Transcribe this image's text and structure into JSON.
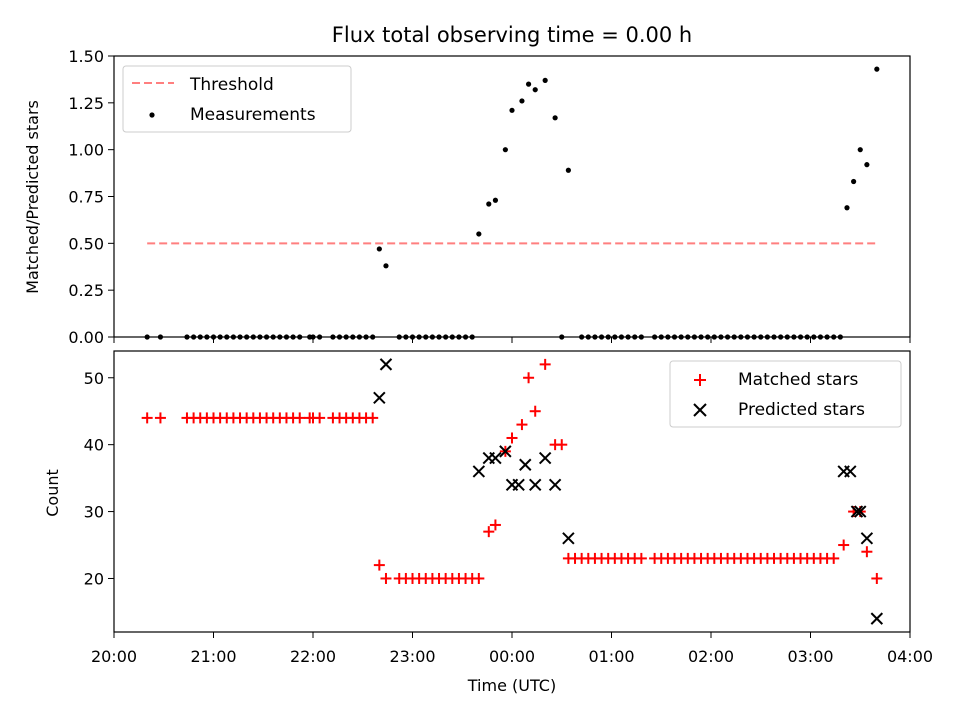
{
  "chart_data": [
    {
      "type": "scatter",
      "title": "Flux total observing time = 0.00 h",
      "xlabel": "",
      "ylabel": "Matched/Predicted stars",
      "xlim": [
        "20:00",
        "04:00"
      ],
      "ylim": [
        0,
        1.5
      ],
      "yticks": [
        "0.00",
        "0.25",
        "0.50",
        "0.75",
        "1.00",
        "1.25",
        "1.50"
      ],
      "legend": {
        "placement": "upper left",
        "entries": [
          "Threshold",
          "Measurements"
        ]
      },
      "colors": {
        "threshold": "#ff7f7f",
        "measurements": "#000000"
      },
      "threshold": {
        "name": "Threshold",
        "value": 0.5,
        "x_start": "20:20",
        "x_end": "03:40"
      },
      "series": [
        {
          "name": "Measurements",
          "points": [
            [
              "20:20",
              0
            ],
            [
              "20:28",
              0
            ],
            [
              "20:44",
              0
            ],
            [
              "20:48",
              0
            ],
            [
              "20:52",
              0
            ],
            [
              "20:56",
              0
            ],
            [
              "21:00",
              0
            ],
            [
              "21:04",
              0
            ],
            [
              "21:08",
              0
            ],
            [
              "21:12",
              0
            ],
            [
              "21:16",
              0
            ],
            [
              "21:20",
              0
            ],
            [
              "21:24",
              0
            ],
            [
              "21:28",
              0
            ],
            [
              "21:32",
              0
            ],
            [
              "21:36",
              0
            ],
            [
              "21:40",
              0
            ],
            [
              "21:44",
              0
            ],
            [
              "21:48",
              0
            ],
            [
              "21:52",
              0
            ],
            [
              "21:58",
              0
            ],
            [
              "22:00",
              0
            ],
            [
              "22:04",
              0
            ],
            [
              "22:12",
              0
            ],
            [
              "22:16",
              0
            ],
            [
              "22:20",
              0
            ],
            [
              "22:24",
              0
            ],
            [
              "22:28",
              0
            ],
            [
              "22:32",
              0
            ],
            [
              "22:36",
              0
            ],
            [
              "22:40",
              0.47
            ],
            [
              "22:44",
              0.38
            ],
            [
              "22:52",
              0
            ],
            [
              "22:56",
              0
            ],
            [
              "23:00",
              0
            ],
            [
              "23:04",
              0
            ],
            [
              "23:08",
              0
            ],
            [
              "23:12",
              0
            ],
            [
              "23:16",
              0
            ],
            [
              "23:20",
              0
            ],
            [
              "23:24",
              0
            ],
            [
              "23:28",
              0
            ],
            [
              "23:32",
              0
            ],
            [
              "23:36",
              0
            ],
            [
              "23:40",
              0.55
            ],
            [
              "23:46",
              0.71
            ],
            [
              "23:50",
              0.73
            ],
            [
              "23:56",
              1.0
            ],
            [
              "00:00",
              1.21
            ],
            [
              "00:06",
              1.26
            ],
            [
              "00:10",
              1.35
            ],
            [
              "00:14",
              1.32
            ],
            [
              "00:20",
              1.37
            ],
            [
              "00:26",
              1.17
            ],
            [
              "00:30",
              0
            ],
            [
              "00:34",
              0.89
            ],
            [
              "00:42",
              0
            ],
            [
              "00:46",
              0
            ],
            [
              "00:50",
              0
            ],
            [
              "00:54",
              0
            ],
            [
              "00:58",
              0
            ],
            [
              "01:02",
              0
            ],
            [
              "01:06",
              0
            ],
            [
              "01:10",
              0
            ],
            [
              "01:14",
              0
            ],
            [
              "01:18",
              0
            ],
            [
              "01:26",
              0
            ],
            [
              "01:30",
              0
            ],
            [
              "01:34",
              0
            ],
            [
              "01:38",
              0
            ],
            [
              "01:42",
              0
            ],
            [
              "01:46",
              0
            ],
            [
              "01:50",
              0
            ],
            [
              "01:54",
              0
            ],
            [
              "01:58",
              0
            ],
            [
              "02:02",
              0
            ],
            [
              "02:06",
              0
            ],
            [
              "02:10",
              0
            ],
            [
              "02:14",
              0
            ],
            [
              "02:18",
              0
            ],
            [
              "02:22",
              0
            ],
            [
              "02:26",
              0
            ],
            [
              "02:30",
              0
            ],
            [
              "02:34",
              0
            ],
            [
              "02:38",
              0
            ],
            [
              "02:42",
              0
            ],
            [
              "02:46",
              0
            ],
            [
              "02:50",
              0
            ],
            [
              "02:54",
              0
            ],
            [
              "02:58",
              0
            ],
            [
              "03:02",
              0
            ],
            [
              "03:06",
              0
            ],
            [
              "03:10",
              0
            ],
            [
              "03:14",
              0
            ],
            [
              "03:18",
              0
            ],
            [
              "03:22",
              0.69
            ],
            [
              "03:26",
              0.83
            ],
            [
              "03:30",
              1.0
            ],
            [
              "03:34",
              0.92
            ],
            [
              "03:40",
              1.43
            ]
          ]
        }
      ]
    },
    {
      "type": "scatter",
      "title": "",
      "xlabel": "Time (UTC)",
      "ylabel": "Count",
      "xlim": [
        "20:00",
        "04:00"
      ],
      "ylim": [
        12,
        54
      ],
      "yticks": [
        "20",
        "30",
        "40",
        "50"
      ],
      "xticks": [
        "20:00",
        "21:00",
        "22:00",
        "23:00",
        "00:00",
        "01:00",
        "02:00",
        "03:00",
        "04:00"
      ],
      "legend": {
        "placement": "upper right",
        "entries": [
          "Matched stars",
          "Predicted stars"
        ]
      },
      "colors": {
        "matched": "#ff0000",
        "predicted": "#000000"
      },
      "series": [
        {
          "name": "Matched stars",
          "marker": "+",
          "points": [
            [
              "20:20",
              44
            ],
            [
              "20:28",
              44
            ],
            [
              "20:44",
              44
            ],
            [
              "20:48",
              44
            ],
            [
              "20:52",
              44
            ],
            [
              "20:56",
              44
            ],
            [
              "21:00",
              44
            ],
            [
              "21:04",
              44
            ],
            [
              "21:08",
              44
            ],
            [
              "21:12",
              44
            ],
            [
              "21:16",
              44
            ],
            [
              "21:20",
              44
            ],
            [
              "21:24",
              44
            ],
            [
              "21:28",
              44
            ],
            [
              "21:32",
              44
            ],
            [
              "21:36",
              44
            ],
            [
              "21:40",
              44
            ],
            [
              "21:44",
              44
            ],
            [
              "21:48",
              44
            ],
            [
              "21:52",
              44
            ],
            [
              "21:58",
              44
            ],
            [
              "22:00",
              44
            ],
            [
              "22:04",
              44
            ],
            [
              "22:12",
              44
            ],
            [
              "22:16",
              44
            ],
            [
              "22:20",
              44
            ],
            [
              "22:24",
              44
            ],
            [
              "22:28",
              44
            ],
            [
              "22:32",
              44
            ],
            [
              "22:36",
              44
            ],
            [
              "22:40",
              22
            ],
            [
              "22:44",
              20
            ],
            [
              "22:52",
              20
            ],
            [
              "22:56",
              20
            ],
            [
              "23:00",
              20
            ],
            [
              "23:04",
              20
            ],
            [
              "23:08",
              20
            ],
            [
              "23:12",
              20
            ],
            [
              "23:16",
              20
            ],
            [
              "23:20",
              20
            ],
            [
              "23:24",
              20
            ],
            [
              "23:28",
              20
            ],
            [
              "23:32",
              20
            ],
            [
              "23:36",
              20
            ],
            [
              "23:40",
              20
            ],
            [
              "23:46",
              27
            ],
            [
              "23:50",
              28
            ],
            [
              "23:56",
              39
            ],
            [
              "00:00",
              41
            ],
            [
              "00:06",
              43
            ],
            [
              "00:10",
              50
            ],
            [
              "00:14",
              45
            ],
            [
              "00:20",
              52
            ],
            [
              "00:26",
              40
            ],
            [
              "00:30",
              40
            ],
            [
              "00:34",
              23
            ],
            [
              "00:38",
              23
            ],
            [
              "00:42",
              23
            ],
            [
              "00:46",
              23
            ],
            [
              "00:50",
              23
            ],
            [
              "00:54",
              23
            ],
            [
              "00:58",
              23
            ],
            [
              "01:02",
              23
            ],
            [
              "01:06",
              23
            ],
            [
              "01:10",
              23
            ],
            [
              "01:14",
              23
            ],
            [
              "01:18",
              23
            ],
            [
              "01:26",
              23
            ],
            [
              "01:30",
              23
            ],
            [
              "01:34",
              23
            ],
            [
              "01:38",
              23
            ],
            [
              "01:42",
              23
            ],
            [
              "01:46",
              23
            ],
            [
              "01:50",
              23
            ],
            [
              "01:54",
              23
            ],
            [
              "01:58",
              23
            ],
            [
              "02:02",
              23
            ],
            [
              "02:06",
              23
            ],
            [
              "02:10",
              23
            ],
            [
              "02:14",
              23
            ],
            [
              "02:18",
              23
            ],
            [
              "02:22",
              23
            ],
            [
              "02:26",
              23
            ],
            [
              "02:30",
              23
            ],
            [
              "02:34",
              23
            ],
            [
              "02:38",
              23
            ],
            [
              "02:42",
              23
            ],
            [
              "02:46",
              23
            ],
            [
              "02:50",
              23
            ],
            [
              "02:54",
              23
            ],
            [
              "02:58",
              23
            ],
            [
              "03:02",
              23
            ],
            [
              "03:06",
              23
            ],
            [
              "03:10",
              23
            ],
            [
              "03:14",
              23
            ],
            [
              "03:20",
              25
            ],
            [
              "03:26",
              30
            ],
            [
              "03:30",
              30
            ],
            [
              "03:34",
              24
            ],
            [
              "03:40",
              20
            ]
          ]
        },
        {
          "name": "Predicted stars",
          "marker": "x",
          "points": [
            [
              "22:40",
              47
            ],
            [
              "22:44",
              52
            ],
            [
              "23:40",
              36
            ],
            [
              "23:46",
              38
            ],
            [
              "23:50",
              38
            ],
            [
              "23:56",
              39
            ],
            [
              "00:00",
              34
            ],
            [
              "00:04",
              34
            ],
            [
              "00:08",
              37
            ],
            [
              "00:14",
              34
            ],
            [
              "00:20",
              38
            ],
            [
              "00:26",
              34
            ],
            [
              "00:34",
              26
            ],
            [
              "03:20",
              36
            ],
            [
              "03:24",
              36
            ],
            [
              "03:28",
              30
            ],
            [
              "03:30",
              30
            ],
            [
              "03:34",
              26
            ],
            [
              "03:40",
              14
            ]
          ]
        }
      ]
    }
  ]
}
